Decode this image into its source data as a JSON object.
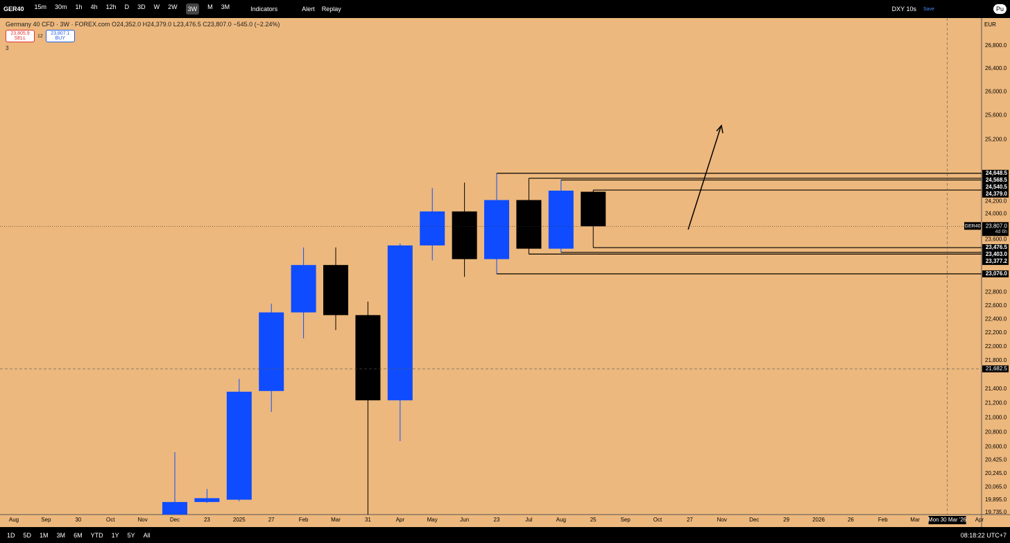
{
  "toolbar": {
    "symbol": "GER40",
    "intervals": [
      "15m",
      "30m",
      "1h",
      "4h",
      "12h",
      "D",
      "3D",
      "W",
      "2W",
      "3W",
      "M",
      "3M"
    ],
    "active_interval": "3W",
    "indicators": "Indicators",
    "alert": "Alert",
    "replay": "Replay",
    "watch": "DXY 10s",
    "save": "Save",
    "publish": "Pu"
  },
  "legend": {
    "title": "Germany 40 CFD · 3W · FOREX.com",
    "ohlc": [
      {
        "key": "O",
        "value": "24,352.0"
      },
      {
        "key": "H",
        "value": "24,379.0"
      },
      {
        "key": "L",
        "value": "23,476.5"
      },
      {
        "key": "C",
        "value": "23,807.0"
      }
    ],
    "change": "−545.0 (−2.24%)",
    "sell": {
      "price": "23,805.9",
      "label": "SELL"
    },
    "spread": "12",
    "buy": {
      "price": "23,807.1",
      "label": "BUY"
    },
    "indicators_count": "3",
    "currency": "EUR"
  },
  "chart_data": {
    "type": "candlestick",
    "log": true,
    "grid": false,
    "up_color": "#0f4cff",
    "down_color": "#000000",
    "categories": [
      "Aug",
      "Sep",
      "30",
      "Oct",
      "Nov",
      "Dec",
      "23",
      "2025",
      "27",
      "Feb",
      "Mar",
      "31",
      "Apr",
      "May",
      "Jun",
      "23",
      "Jul",
      "Aug",
      "25",
      "Sep",
      "Oct",
      "27",
      "Nov",
      "Dec",
      "29",
      "2026",
      "26",
      "Feb",
      "Mar",
      null,
      "Apr"
    ],
    "open": [
      null,
      null,
      null,
      null,
      null,
      19600,
      19870,
      19900,
      21370,
      22500,
      23210,
      22460,
      21240,
      23510,
      24040,
      23300,
      24220,
      23460,
      24352.0,
      null,
      null,
      null,
      null,
      null,
      null,
      null,
      null,
      null,
      null,
      null,
      null
    ],
    "high": [
      null,
      null,
      null,
      null,
      null,
      20530,
      20040,
      21540,
      22630,
      23480,
      23480,
      22660,
      23540,
      24410,
      24500,
      24648.5,
      24568.5,
      24540.5,
      24379.0,
      null,
      null,
      null,
      null,
      null,
      null,
      null,
      null,
      null,
      null,
      null,
      null
    ],
    "low": [
      null,
      null,
      null,
      null,
      null,
      19500,
      19860,
      19880,
      21080,
      22120,
      22240,
      19500,
      20680,
      23280,
      23030,
      23076.0,
      23377.2,
      23403.0,
      23476.5,
      null,
      null,
      null,
      null,
      null,
      null,
      null,
      null,
      null,
      null,
      null,
      null
    ],
    "close": [
      null,
      null,
      null,
      null,
      null,
      19870,
      19920,
      21360,
      22500,
      23210,
      22460,
      21240,
      23510,
      24040,
      23300,
      24220,
      23460,
      24370,
      23807.0,
      null,
      null,
      null,
      null,
      null,
      null,
      null,
      null,
      null,
      null,
      null,
      null
    ],
    "ylim": [
      19707,
      27290
    ],
    "yticks": [
      {
        "value": 26800,
        "label": "26,800.0"
      },
      {
        "value": 26400,
        "label": "26,400.0"
      },
      {
        "value": 26000,
        "label": "26,000.0"
      },
      {
        "value": 25600,
        "label": "25,600.0"
      },
      {
        "value": 25200,
        "label": "25,200.0"
      },
      {
        "value": 24200,
        "label": "24,200.0"
      },
      {
        "value": 24000,
        "label": "24,000.0"
      },
      {
        "value": 23600,
        "label": "23,600.0"
      },
      {
        "value": 22800,
        "label": "22,800.0"
      },
      {
        "value": 22600,
        "label": "22,600.0"
      },
      {
        "value": 22400,
        "label": "22,400.0"
      },
      {
        "value": 22200,
        "label": "22,200.0"
      },
      {
        "value": 22000,
        "label": "22,000.0"
      },
      {
        "value": 21800,
        "label": "21,800.0"
      },
      {
        "value": 21400,
        "label": "21,400.0"
      },
      {
        "value": 21200,
        "label": "21,200.0"
      },
      {
        "value": 21000,
        "label": "21,000.0"
      },
      {
        "value": 20800,
        "label": "20,800.0"
      },
      {
        "value": 20600,
        "label": "20,600.0"
      },
      {
        "value": 20425,
        "label": "20,425.0"
      },
      {
        "value": 20245,
        "label": "20,245.0"
      },
      {
        "value": 20065,
        "label": "20,065.0"
      },
      {
        "value": 19895,
        "label": "19,895.0"
      },
      {
        "value": 19735,
        "label": "19,735.0"
      }
    ],
    "levels": [
      {
        "value": 24648.5,
        "label": "24,648.5"
      },
      {
        "value": 24568.5,
        "label": "24,568.5"
      },
      {
        "value": 24540.5,
        "label": "24,540.5"
      },
      {
        "value": 24379.0,
        "label": "24,379.0"
      },
      {
        "value": 23476.5,
        "label": "23,476.5"
      },
      {
        "value": 23403.0,
        "label": "23,403.0"
      },
      {
        "value": 23377.2,
        "label": "23,377.2"
      },
      {
        "value": 23076.0,
        "label": "23,076.0"
      }
    ],
    "last_price": {
      "value": 23807.0,
      "label": "23,807.0",
      "symbol": "GER40",
      "countdown": "4d 6h"
    },
    "crosshair": {
      "value": 21682.5,
      "label": "21,682.5",
      "x_label": "Mon 30 Mar '26"
    }
  },
  "bottom_bar": {
    "ranges": [
      "1D",
      "5D",
      "1M",
      "3M",
      "6M",
      "YTD",
      "1Y",
      "5Y",
      "All"
    ],
    "clock": "08:18:22 UTC+7"
  }
}
